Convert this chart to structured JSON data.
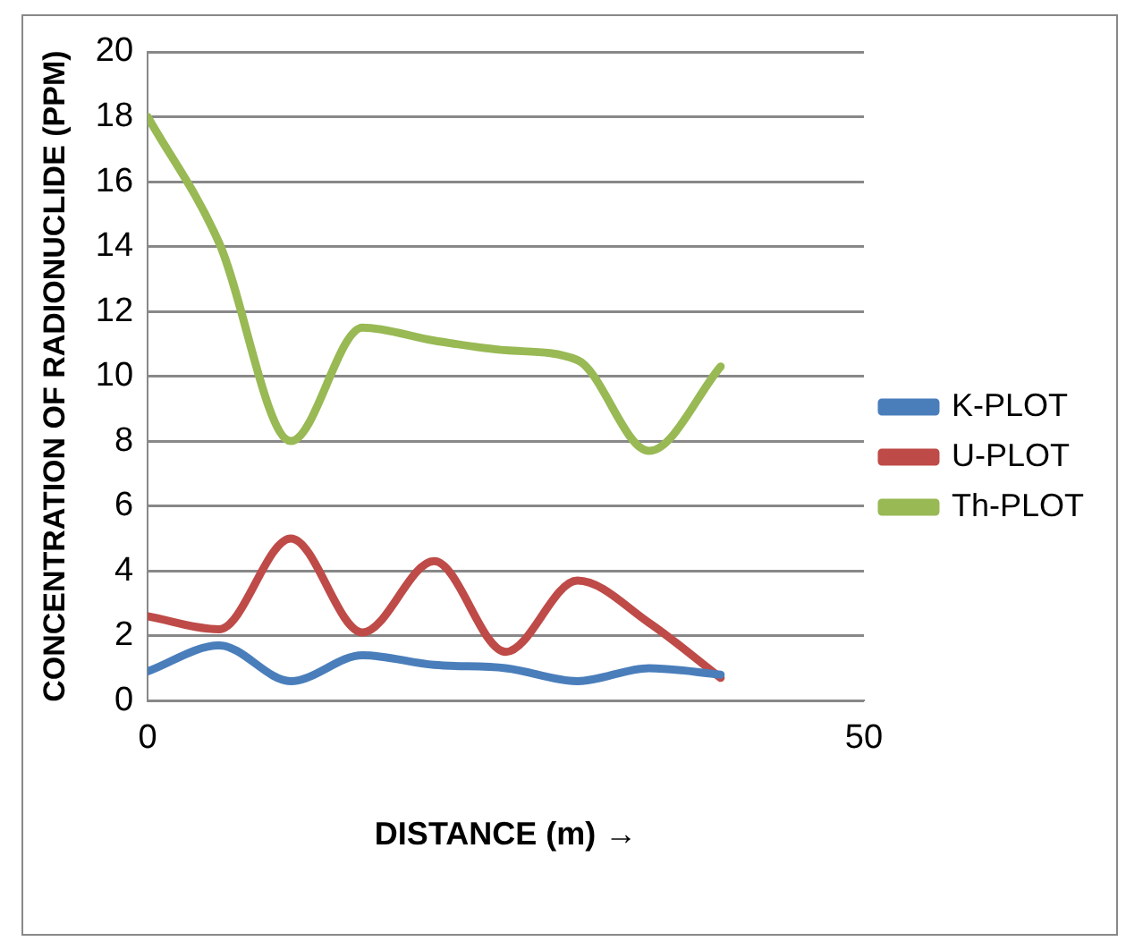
{
  "chart_data": {
    "type": "line",
    "xlabel": "DISTANCE (m) →",
    "ylabel": "CONCENTRATION OF RADIONUCLIDE (PPM)",
    "x": [
      0,
      5,
      10,
      15,
      20,
      25,
      30,
      35,
      40
    ],
    "series": [
      {
        "name": "K-PLOT",
        "color": "#4a7ebb",
        "values": [
          0.9,
          1.7,
          0.6,
          1.4,
          1.1,
          1.0,
          0.6,
          1.0,
          0.8
        ]
      },
      {
        "name": "U-PLOT",
        "color": "#be4b48",
        "values": [
          2.6,
          2.2,
          5.0,
          2.1,
          4.3,
          1.5,
          3.7,
          2.4,
          0.7
        ]
      },
      {
        "name": "Th-PLOT",
        "color": "#98b954",
        "values": [
          18,
          14.1,
          8,
          11.5,
          11.1,
          10.8,
          10.5,
          7.7,
          10.3
        ]
      }
    ],
    "xlim": [
      0,
      50
    ],
    "xticks": [
      0,
      50
    ],
    "ylim": [
      0,
      20
    ],
    "yticks": [
      0,
      2,
      4,
      6,
      8,
      10,
      12,
      14,
      16,
      18,
      20
    ],
    "grid": "y",
    "legend": "right",
    "marker": "none",
    "line_style": "solid"
  }
}
